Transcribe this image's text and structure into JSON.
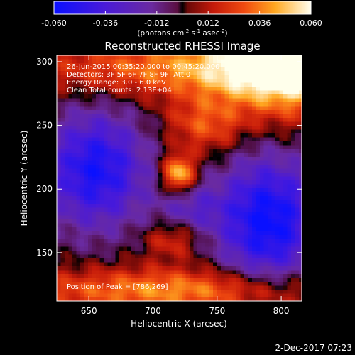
{
  "colorbar": {
    "ticks": [
      "-0.060",
      "-0.036",
      "-0.012",
      "0.012",
      "0.036",
      "0.060"
    ],
    "unit_main": "(photons cm",
    "unit_exp1": "-2",
    "unit_mid": " s",
    "unit_exp2": "-1",
    "unit_end": " asec",
    "unit_exp3": "-2",
    "unit_close": ")",
    "vmin": -0.06,
    "vmax": 0.06
  },
  "chart_data": {
    "type": "heatmap",
    "title": "Reconstructed RHESSI Image",
    "xlabel": "Heliocentric X (arcsec)",
    "ylabel": "Heliocentric Y (arcsec)",
    "xlim": [
      625,
      816
    ],
    "ylim": [
      112,
      305
    ],
    "xticks": [
      "650",
      "700",
      "750",
      "800"
    ],
    "yticks": [
      "150",
      "200",
      "250",
      "300"
    ],
    "annotations": [
      "26-Jun-2015 00:35:20.000 to 00:45:20.000",
      "Detectors: 3F 5F 6F 7F 8F 9F, Att 0",
      "Energy Range: 3.0 - 6.0 keV",
      "Clean    Total counts: 2.13E+04"
    ],
    "peak_label": "Position of Peak = [786,269]",
    "peak": [
      786,
      269
    ],
    "colormap": "rhessi-thermal",
    "grid": false
  },
  "footer": {
    "timestamp": "2-Dec-2017 07:23"
  }
}
